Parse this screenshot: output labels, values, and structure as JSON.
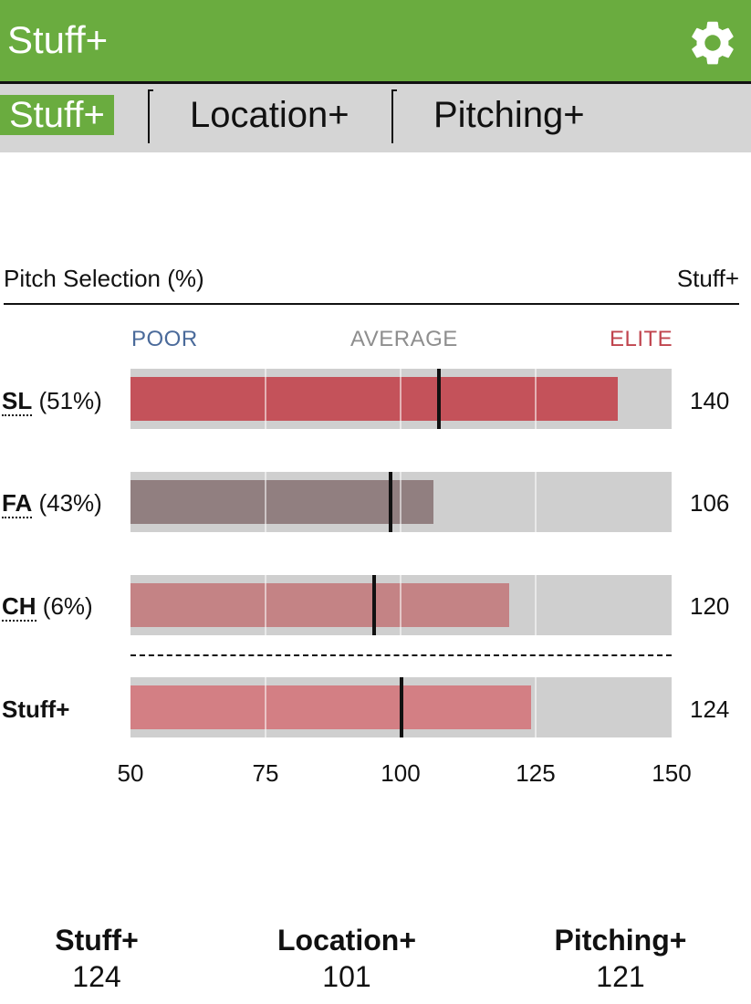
{
  "header": {
    "title": "Stuff+",
    "settings_icon": "gear-icon"
  },
  "tabs": [
    {
      "label": "Stuff+",
      "active": true
    },
    {
      "label": "Location+",
      "active": false
    },
    {
      "label": "Pitching+",
      "active": false
    }
  ],
  "section": {
    "left_heading": "Pitch Selection (%)",
    "right_heading": "Stuff+"
  },
  "scale": {
    "poor": "POOR",
    "average": "AVERAGE",
    "elite": "ELITE"
  },
  "colors": {
    "brand": "#6aac3f",
    "poor": "#4a6a9a",
    "average": "#8e8e8e",
    "elite": "#c0444e",
    "sl_bar": "#c4525a",
    "fa_bar": "#917f80",
    "ch_bar": "#c48385",
    "stuff_bar": "#d37f84"
  },
  "chart_data": {
    "type": "bar",
    "orientation": "horizontal",
    "xlim": [
      50,
      150
    ],
    "xticks": [
      "50",
      "75",
      "100",
      "125",
      "150"
    ],
    "rows": [
      {
        "pitch": "SL",
        "pct": "(51%)",
        "value": 140,
        "value_label": "140",
        "marker": 107
      },
      {
        "pitch": "FA",
        "pct": "(43%)",
        "value": 106,
        "value_label": "106",
        "marker": 98
      },
      {
        "pitch": "CH",
        "pct": "(6%)",
        "value": 120,
        "value_label": "120",
        "marker": 95
      }
    ],
    "overall": {
      "label": "Stuff+",
      "value": 124,
      "value_label": "124",
      "marker": 100
    }
  },
  "summary": [
    {
      "label": "Stuff+",
      "value": "124"
    },
    {
      "label": "Location+",
      "value": "101"
    },
    {
      "label": "Pitching+",
      "value": "121"
    }
  ]
}
